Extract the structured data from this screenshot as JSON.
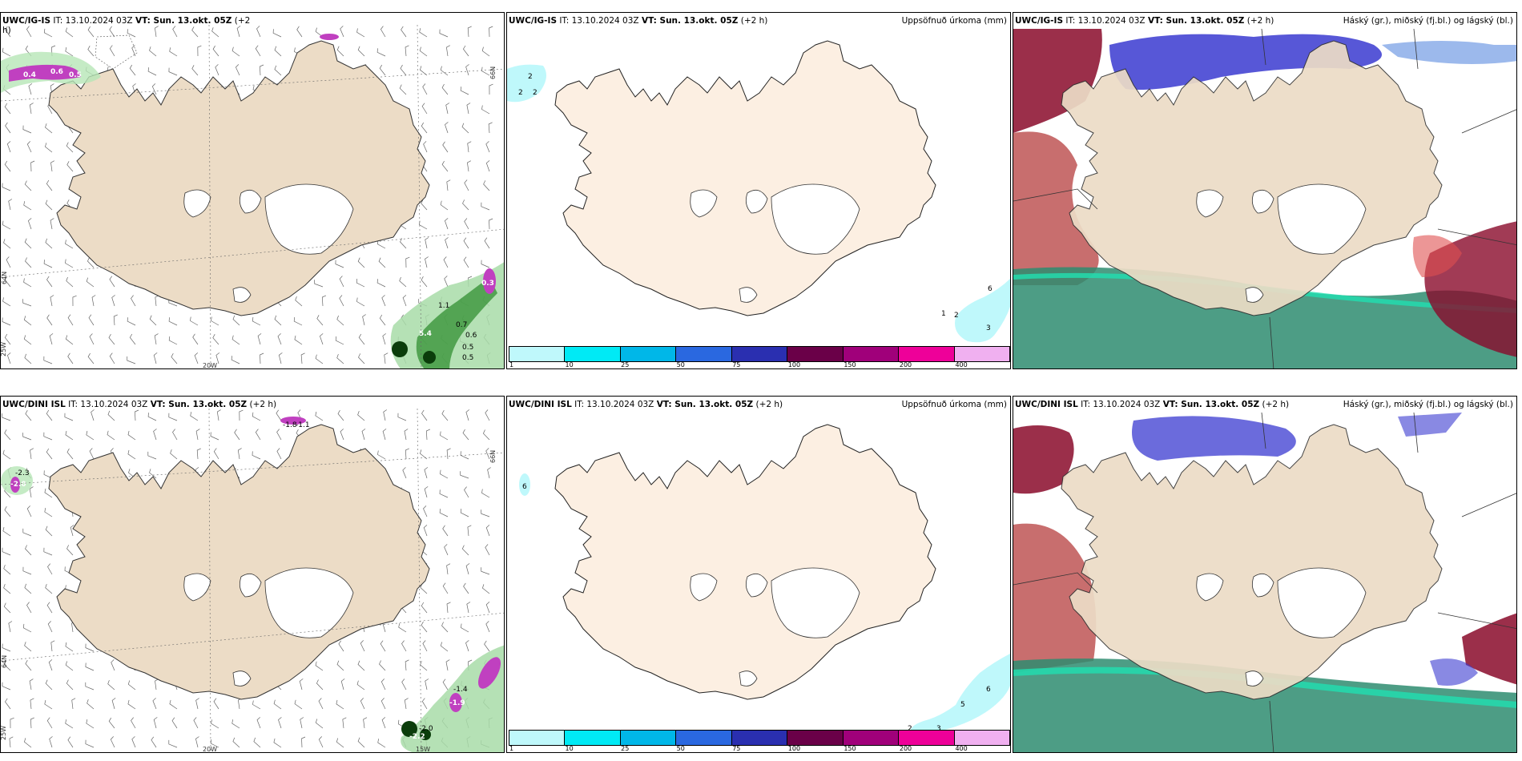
{
  "panels": {
    "top_left": {
      "model": "UWC/IG-IS",
      "it": "IT: 13.10.2024 03Z",
      "vt": "VT: Sun. 13.okt. 05Z",
      "lead": "(+2",
      "lead2": "h)"
    },
    "top_mid": {
      "model": "UWC/IG-IS",
      "it": "IT: 13.10.2024 03Z",
      "vt": "VT: Sun. 13.okt. 05Z",
      "lead": "(+2 h)",
      "right": "Uppsöfnuð úrkoma (mm)"
    },
    "top_right": {
      "model": "UWC/IG-IS",
      "it": "IT: 13.10.2024 03Z",
      "vt": "VT: Sun. 13.okt. 05Z",
      "lead": "(+2 h)",
      "right": "Háský (gr.), miðský (fj.bl.) og lágský (bl.)"
    },
    "bottom_left": {
      "model": "UWC/DINI ISL",
      "it": "IT: 13.10.2024 03Z",
      "vt": "VT: Sun. 13.okt. 05Z",
      "lead": "(+2 h)"
    },
    "bottom_mid": {
      "model": "UWC/DINI ISL",
      "it": "IT: 13.10.2024 03Z",
      "vt": "VT: Sun. 13.okt. 05Z",
      "lead": "(+2 h)",
      "right": "Uppsöfnuð úrkoma (mm)"
    },
    "bottom_right": {
      "model": "UWC/DINI ISL",
      "it": "IT: 13.10.2024 03Z",
      "vt": "VT: Sun. 13.okt. 05Z",
      "lead": "(+2 h)",
      "right": "Háský (gr.), miðský (fj.bl.) og lágský (bl.)"
    }
  },
  "grid_labels": {
    "lat66": "66N",
    "lat64": "64N",
    "lon20": "20W",
    "lon15": "15W",
    "lon25": "25W"
  },
  "colorbar": {
    "colors": [
      "#bff8fb",
      "#00eaf5",
      "#00b7e8",
      "#2a68e0",
      "#2a2fb0",
      "#6a0048",
      "#a0007a",
      "#ee0099",
      "#f0b0f0"
    ],
    "labels": [
      "1",
      "10",
      "25",
      "50",
      "75",
      "100",
      "150",
      "200",
      "400"
    ]
  },
  "precip_labels_top": [
    "2",
    "2",
    "2",
    "6",
    "1",
    "2",
    "3"
  ],
  "precip_labels_bottom": [
    "6",
    "5",
    "6",
    "2",
    "3"
  ],
  "temp_labels_top": [
    "0.4",
    "0.6",
    "0.5",
    "0.7",
    "0.6",
    "0.5",
    "0.5",
    "1.1",
    "5.4",
    "0.3"
  ],
  "temp_labels_bottom": [
    "-1.8",
    "-1.1",
    "-2.3",
    "-2.0",
    "-1.4",
    "-1.9",
    "-2.0",
    "-2.2"
  ],
  "colors": {
    "land": "#ecdcc6",
    "land_mid": "#fcefe2",
    "sea": "#ffffff",
    "cloud_high": "#2e8c70",
    "cloud_mid": "#3a3ad0",
    "cloud_low": "#8a0a2a"
  }
}
